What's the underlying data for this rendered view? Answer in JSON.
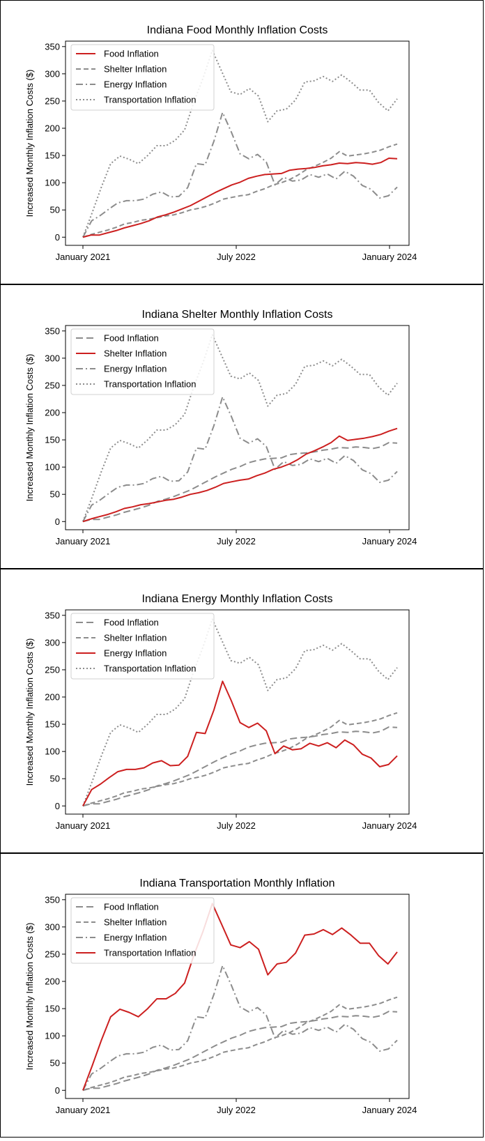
{
  "chart_data": [
    {
      "type": "line",
      "title": "Indiana Food Monthly Inflation Costs",
      "ylabel": "Increased Monthly Inflation Costs ($)",
      "xlabel": "",
      "x_ticks": [
        "January 2021",
        "July 2022",
        "January 2024"
      ],
      "y_ticks": [
        0,
        50,
        100,
        150,
        200,
        250,
        300,
        350
      ],
      "ylim": [
        -15,
        360
      ],
      "legend": "top-left",
      "highlight": "Food Inflation",
      "series": [
        {
          "name": "Food Inflation",
          "values": [
            0,
            4,
            4,
            8,
            12,
            17,
            21,
            25,
            30,
            37,
            41,
            46,
            52,
            58,
            66,
            74,
            82,
            89,
            96,
            101,
            108,
            112,
            115,
            116,
            117,
            123,
            125,
            126,
            128,
            131,
            133,
            136,
            135,
            137,
            136,
            134,
            137,
            145,
            144
          ]
        },
        {
          "name": "Shelter Inflation",
          "values": [
            0,
            5,
            9,
            13,
            18,
            24,
            27,
            31,
            33,
            36,
            39,
            41,
            45,
            50,
            53,
            57,
            63,
            70,
            73,
            76,
            78,
            84,
            89,
            96,
            100,
            106,
            114,
            124,
            130,
            137,
            145,
            157,
            149,
            151,
            153,
            156,
            160,
            166,
            171
          ]
        },
        {
          "name": "Energy Inflation",
          "values": [
            0,
            30,
            40,
            52,
            63,
            67,
            67,
            70,
            79,
            83,
            74,
            75,
            91,
            135,
            133,
            176,
            229,
            193,
            153,
            144,
            152,
            138,
            96,
            110,
            103,
            105,
            115,
            110,
            116,
            107,
            121,
            112,
            95,
            88,
            72,
            76,
            92
          ]
        },
        {
          "name": "Transportation Inflation",
          "values": [
            0,
            45,
            92,
            135,
            149,
            143,
            135,
            150,
            168,
            168,
            178,
            197,
            248,
            292,
            343,
            305,
            267,
            262,
            273,
            259,
            212,
            232,
            235,
            252,
            285,
            287,
            295,
            286,
            298,
            285,
            270,
            270,
            247,
            232,
            254
          ]
        }
      ]
    },
    {
      "type": "line",
      "title": "Indiana Shelter Monthly Inflation Costs",
      "ylabel": "Increased Monthly Inflation Costs ($)",
      "xlabel": "",
      "x_ticks": [
        "January 2021",
        "July 2022",
        "January 2024"
      ],
      "y_ticks": [
        0,
        50,
        100,
        150,
        200,
        250,
        300,
        350
      ],
      "ylim": [
        -15,
        360
      ],
      "legend": "top-left",
      "highlight": "Shelter Inflation",
      "series": [
        {
          "name": "Food Inflation",
          "values": [
            0,
            4,
            4,
            8,
            12,
            17,
            21,
            25,
            30,
            37,
            41,
            46,
            52,
            58,
            66,
            74,
            82,
            89,
            96,
            101,
            108,
            112,
            115,
            116,
            117,
            123,
            125,
            126,
            128,
            131,
            133,
            136,
            135,
            137,
            136,
            134,
            137,
            145,
            144
          ]
        },
        {
          "name": "Shelter Inflation",
          "values": [
            0,
            5,
            9,
            13,
            18,
            24,
            27,
            31,
            33,
            36,
            39,
            41,
            45,
            50,
            53,
            57,
            63,
            70,
            73,
            76,
            78,
            84,
            89,
            96,
            100,
            106,
            114,
            124,
            130,
            137,
            145,
            157,
            149,
            151,
            153,
            156,
            160,
            166,
            171
          ]
        },
        {
          "name": "Energy Inflation",
          "values": [
            0,
            30,
            40,
            52,
            63,
            67,
            67,
            70,
            79,
            83,
            74,
            75,
            91,
            135,
            133,
            176,
            229,
            193,
            153,
            144,
            152,
            138,
            96,
            110,
            103,
            105,
            115,
            110,
            116,
            107,
            121,
            112,
            95,
            88,
            72,
            76,
            92
          ]
        },
        {
          "name": "Transportation Inflation",
          "values": [
            0,
            45,
            92,
            135,
            149,
            143,
            135,
            150,
            168,
            168,
            178,
            197,
            248,
            292,
            343,
            305,
            267,
            262,
            273,
            259,
            212,
            232,
            235,
            252,
            285,
            287,
            295,
            286,
            298,
            285,
            270,
            270,
            247,
            232,
            254
          ]
        }
      ]
    },
    {
      "type": "line",
      "title": "Indiana Energy Monthly Inflation Costs",
      "ylabel": "Increased Monthly Inflation Costs ($)",
      "xlabel": "",
      "x_ticks": [
        "January 2021",
        "July 2022",
        "January 2024"
      ],
      "y_ticks": [
        0,
        50,
        100,
        150,
        200,
        250,
        300,
        350
      ],
      "ylim": [
        -15,
        360
      ],
      "legend": "top-left",
      "highlight": "Energy Inflation",
      "series": [
        {
          "name": "Food Inflation",
          "values": [
            0,
            4,
            4,
            8,
            12,
            17,
            21,
            25,
            30,
            37,
            41,
            46,
            52,
            58,
            66,
            74,
            82,
            89,
            96,
            101,
            108,
            112,
            115,
            116,
            117,
            123,
            125,
            126,
            128,
            131,
            133,
            136,
            135,
            137,
            136,
            134,
            137,
            145,
            144
          ]
        },
        {
          "name": "Shelter Inflation",
          "values": [
            0,
            5,
            9,
            13,
            18,
            24,
            27,
            31,
            33,
            36,
            39,
            41,
            45,
            50,
            53,
            57,
            63,
            70,
            73,
            76,
            78,
            84,
            89,
            96,
            100,
            106,
            114,
            124,
            130,
            137,
            145,
            157,
            149,
            151,
            153,
            156,
            160,
            166,
            171
          ]
        },
        {
          "name": "Energy Inflation",
          "values": [
            0,
            30,
            40,
            52,
            63,
            67,
            67,
            70,
            79,
            83,
            74,
            75,
            91,
            135,
            133,
            176,
            229,
            193,
            153,
            144,
            152,
            138,
            96,
            110,
            103,
            105,
            115,
            110,
            116,
            107,
            121,
            112,
            95,
            88,
            72,
            76,
            92
          ]
        },
        {
          "name": "Transportation Inflation",
          "values": [
            0,
            45,
            92,
            135,
            149,
            143,
            135,
            150,
            168,
            168,
            178,
            197,
            248,
            292,
            343,
            305,
            267,
            262,
            273,
            259,
            212,
            232,
            235,
            252,
            285,
            287,
            295,
            286,
            298,
            285,
            270,
            270,
            247,
            232,
            254
          ]
        }
      ]
    },
    {
      "type": "line",
      "title": "Indiana Transportation Monthly Inflation",
      "ylabel": "Increased Monthly Inflation Costs ($)",
      "xlabel": "",
      "x_ticks": [
        "January 2021",
        "July 2022",
        "January 2024"
      ],
      "y_ticks": [
        0,
        50,
        100,
        150,
        200,
        250,
        300,
        350
      ],
      "ylim": [
        -15,
        360
      ],
      "legend": "top-left",
      "highlight": "Transportation Inflation",
      "series": [
        {
          "name": "Food Inflation",
          "values": [
            0,
            4,
            4,
            8,
            12,
            17,
            21,
            25,
            30,
            37,
            41,
            46,
            52,
            58,
            66,
            74,
            82,
            89,
            96,
            101,
            108,
            112,
            115,
            116,
            117,
            123,
            125,
            126,
            128,
            131,
            133,
            136,
            135,
            137,
            136,
            134,
            137,
            145,
            144
          ]
        },
        {
          "name": "Shelter Inflation",
          "values": [
            0,
            5,
            9,
            13,
            18,
            24,
            27,
            31,
            33,
            36,
            39,
            41,
            45,
            50,
            53,
            57,
            63,
            70,
            73,
            76,
            78,
            84,
            89,
            96,
            100,
            106,
            114,
            124,
            130,
            137,
            145,
            157,
            149,
            151,
            153,
            156,
            160,
            166,
            171
          ]
        },
        {
          "name": "Energy Inflation",
          "values": [
            0,
            30,
            40,
            52,
            63,
            67,
            67,
            70,
            79,
            83,
            74,
            75,
            91,
            135,
            133,
            176,
            229,
            193,
            153,
            144,
            152,
            138,
            96,
            110,
            103,
            105,
            115,
            110,
            116,
            107,
            121,
            112,
            95,
            88,
            72,
            76,
            92
          ]
        },
        {
          "name": "Transportation Inflation",
          "values": [
            0,
            45,
            92,
            135,
            149,
            143,
            135,
            150,
            168,
            168,
            178,
            197,
            248,
            292,
            343,
            305,
            267,
            262,
            273,
            259,
            212,
            232,
            235,
            252,
            285,
            287,
            295,
            286,
            298,
            285,
            270,
            270,
            247,
            232,
            254
          ]
        }
      ]
    }
  ],
  "colors": {
    "highlight": "#cc1f1f",
    "other": "#8c8c8c"
  }
}
